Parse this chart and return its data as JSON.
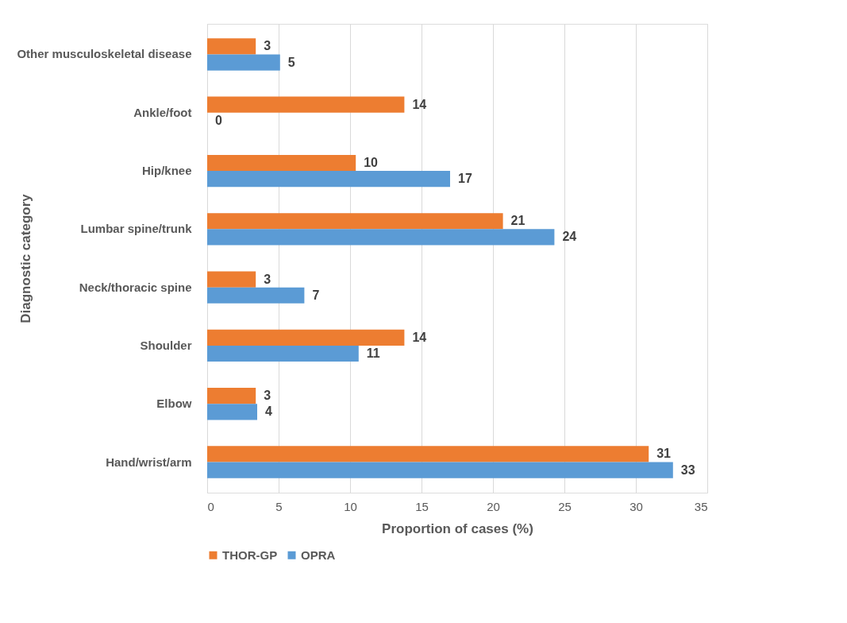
{
  "chart_data": {
    "type": "bar",
    "orientation": "horizontal",
    "xlabel": "Proportion of cases (%)",
    "ylabel": "Diagnostic category",
    "categories": [
      "Other musculoskeletal disease",
      "Ankle/foot",
      "Hip/knee",
      "Lumbar spine/trunk",
      "Neck/thoracic spine",
      "Shoulder",
      "Elbow",
      "Hand/wrist/arm"
    ],
    "series": [
      {
        "name": "THOR-GP",
        "color": "#ed7d31",
        "values": [
          3.4,
          13.8,
          10.4,
          20.7,
          3.4,
          13.8,
          3.4,
          30.9
        ],
        "value_labels": [
          "3",
          "14",
          "10",
          "21",
          "3",
          "14",
          "3",
          "31"
        ]
      },
      {
        "name": "OPRA",
        "color": "#5b9bd5",
        "values": [
          5.1,
          0,
          17.0,
          24.3,
          6.8,
          10.6,
          3.5,
          32.6
        ],
        "value_labels": [
          "5",
          "0",
          "17",
          "24",
          "7",
          "11",
          "4",
          "33"
        ]
      }
    ],
    "xlim": [
      0,
      35
    ],
    "xticks": [
      0,
      5,
      10,
      15,
      20,
      25,
      30,
      35
    ],
    "grid": "x",
    "legend": "bottom"
  }
}
